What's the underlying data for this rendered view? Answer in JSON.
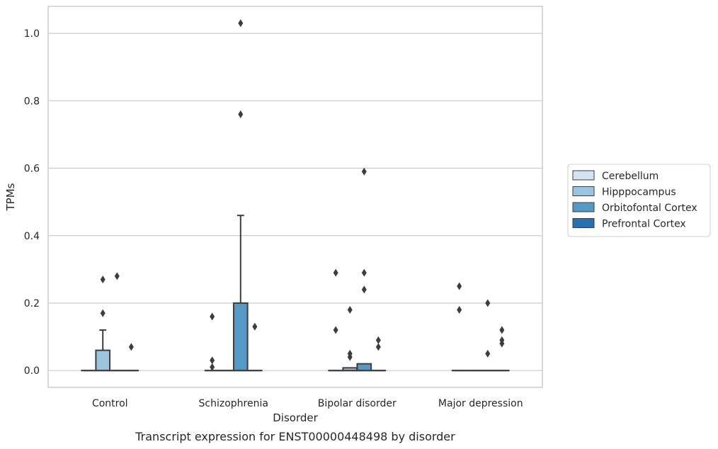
{
  "chart_data": {
    "type": "box",
    "title": "",
    "caption": "Transcript expression for ENST00000448498 by disorder",
    "xlabel": "Disorder",
    "ylabel": "TPMs",
    "ylim": [
      -0.05,
      1.08
    ],
    "yticks": [
      0.0,
      0.2,
      0.4,
      0.6,
      0.8,
      1.0
    ],
    "ytick_labels": [
      "0.0",
      "0.2",
      "0.4",
      "0.6",
      "0.8",
      "1.0"
    ],
    "grid": "horizontal",
    "legend_position": "right",
    "categories": [
      "Control",
      "Schizophrenia",
      "Bipolar disorder",
      "Major depression"
    ],
    "series": [
      {
        "name": "Cerebellum",
        "color": "#d4e3f1",
        "boxes": [
          {
            "q1": 0,
            "median": 0,
            "q3": 0,
            "whislo": 0,
            "whishi": 0,
            "fliers": []
          },
          {
            "q1": 0,
            "median": 0,
            "q3": 0,
            "whislo": 0,
            "whishi": 0,
            "fliers": [
              0.01,
              0.03,
              0.16
            ]
          },
          {
            "q1": 0,
            "median": 0,
            "q3": 0,
            "whislo": 0,
            "whishi": 0,
            "fliers": [
              0.12,
              0.29
            ]
          },
          {
            "q1": 0,
            "median": 0,
            "q3": 0,
            "whislo": 0,
            "whishi": 0,
            "fliers": [
              0.18,
              0.25
            ]
          }
        ]
      },
      {
        "name": "Hipppocampus",
        "color": "#9cc4de",
        "boxes": [
          {
            "q1": 0,
            "median": 0,
            "q3": 0.06,
            "whislo": 0,
            "whishi": 0.12,
            "fliers": [
              0.17,
              0.27
            ]
          },
          {
            "q1": 0,
            "median": 0,
            "q3": 0,
            "whislo": 0,
            "whishi": 0,
            "fliers": []
          },
          {
            "q1": 0,
            "median": 0,
            "q3": 0.008,
            "whislo": 0,
            "whishi": 0.008,
            "fliers": [
              0.04,
              0.05,
              0.18
            ]
          },
          {
            "q1": 0,
            "median": 0,
            "q3": 0,
            "whislo": 0,
            "whishi": 0,
            "fliers": []
          }
        ]
      },
      {
        "name": "Orbitofontal Cortex",
        "color": "#5599c7",
        "boxes": [
          {
            "q1": 0,
            "median": 0,
            "q3": 0,
            "whislo": 0,
            "whishi": 0,
            "fliers": [
              0.28
            ]
          },
          {
            "q1": 0,
            "median": 0,
            "q3": 0.2,
            "whislo": 0,
            "whishi": 0.46,
            "fliers": [
              0.76,
              1.03
            ]
          },
          {
            "q1": 0,
            "median": 0,
            "q3": 0.02,
            "whislo": 0,
            "whishi": 0.02,
            "fliers": [
              0.24,
              0.29,
              0.59
            ]
          },
          {
            "q1": 0,
            "median": 0,
            "q3": 0,
            "whislo": 0,
            "whishi": 0,
            "fliers": [
              0.05,
              0.2
            ]
          }
        ]
      },
      {
        "name": "Prefrontal Cortex",
        "color": "#2a6fae",
        "boxes": [
          {
            "q1": 0,
            "median": 0,
            "q3": 0,
            "whislo": 0,
            "whishi": 0,
            "fliers": [
              0.07
            ]
          },
          {
            "q1": 0,
            "median": 0,
            "q3": 0,
            "whislo": 0,
            "whishi": 0,
            "fliers": [
              0.13
            ]
          },
          {
            "q1": 0,
            "median": 0,
            "q3": 0,
            "whislo": 0,
            "whishi": 0,
            "fliers": [
              0.07,
              0.09
            ]
          },
          {
            "q1": 0,
            "median": 0,
            "q3": 0,
            "whislo": 0,
            "whishi": 0,
            "fliers": [
              0.08,
              0.09,
              0.12
            ]
          }
        ]
      }
    ]
  }
}
